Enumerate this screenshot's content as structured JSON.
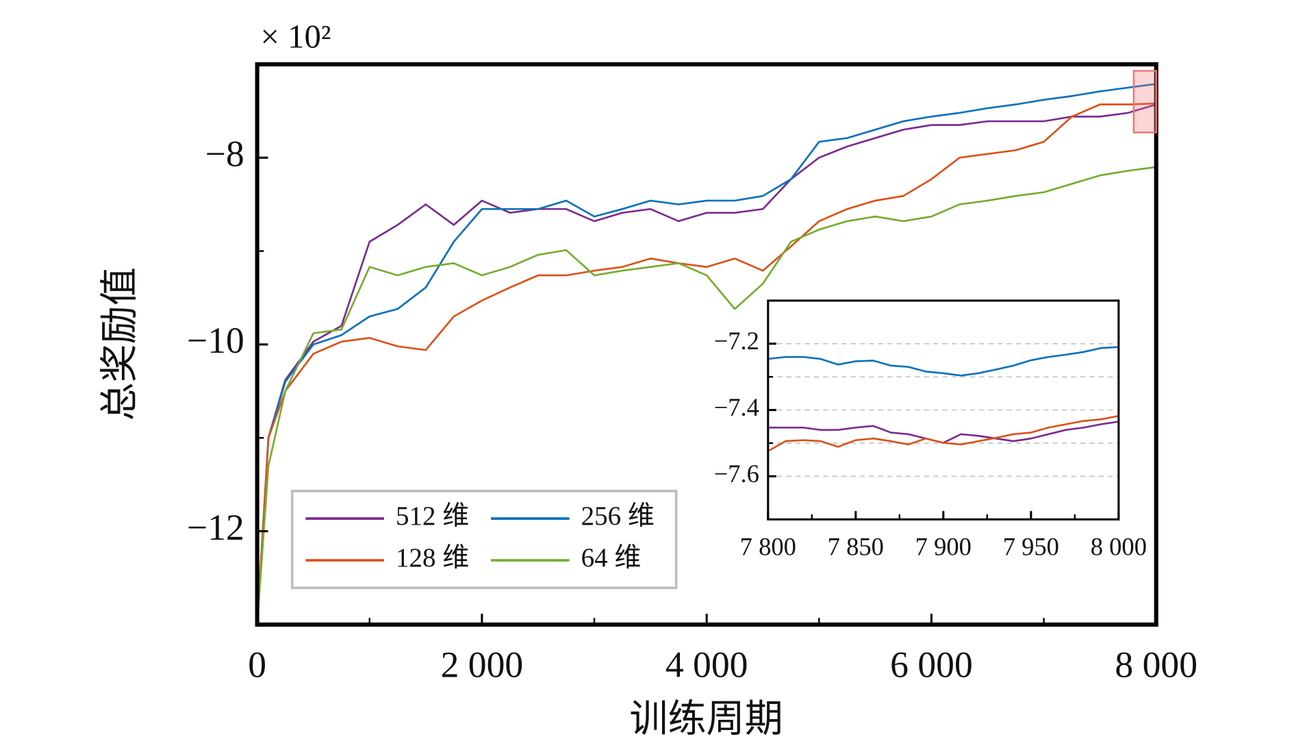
{
  "chart_data": [
    {
      "type": "line",
      "multiplier": "× 10²",
      "x_label": "训练周期",
      "y_label": "总奖励值",
      "x": [
        0,
        100,
        250,
        500,
        750,
        1000,
        1250,
        1500,
        1750,
        2000,
        2250,
        2500,
        2750,
        3000,
        3250,
        3500,
        3750,
        4000,
        4250,
        4500,
        4750,
        5000,
        5250,
        5500,
        5750,
        6000,
        6250,
        6500,
        6750,
        7000,
        7250,
        7500,
        7750,
        8000
      ],
      "series": [
        {
          "name": "512 维",
          "color": "#7b2d8e",
          "values": [
            -13,
            -11,
            -10.38,
            -9.97,
            -9.8,
            -8.9,
            -8.72,
            -8.5,
            -8.72,
            -8.46,
            -8.59,
            -8.55,
            -8.55,
            -8.68,
            -8.59,
            -8.55,
            -8.68,
            -8.59,
            -8.59,
            -8.55,
            -8.23,
            -8.0,
            -7.88,
            -7.79,
            -7.7,
            -7.65,
            -7.65,
            -7.61,
            -7.61,
            -7.61,
            -7.56,
            -7.56,
            -7.52,
            -7.43
          ]
        },
        {
          "name": "256 维",
          "color": "#0a72ba",
          "values": [
            -13,
            -11,
            -10.4,
            -10.0,
            -9.9,
            -9.7,
            -9.62,
            -9.39,
            -8.9,
            -8.55,
            -8.55,
            -8.55,
            -8.46,
            -8.63,
            -8.55,
            -8.46,
            -8.5,
            -8.46,
            -8.46,
            -8.41,
            -8.23,
            -7.83,
            -7.79,
            -7.7,
            -7.61,
            -7.56,
            -7.52,
            -7.47,
            -7.43,
            -7.38,
            -7.34,
            -7.29,
            -7.25,
            -7.21
          ]
        },
        {
          "name": "128 维",
          "color": "#d95319",
          "values": [
            -13,
            -11,
            -10.5,
            -10.1,
            -9.97,
            -9.93,
            -10.02,
            -10.06,
            -9.7,
            -9.53,
            -9.39,
            -9.26,
            -9.26,
            -9.21,
            -9.17,
            -9.08,
            -9.13,
            -9.17,
            -9.08,
            -9.21,
            -8.95,
            -8.68,
            -8.55,
            -8.46,
            -8.41,
            -8.23,
            -8.0,
            -7.96,
            -7.92,
            -7.83,
            -7.56,
            -7.43,
            -7.43,
            -7.42
          ]
        },
        {
          "name": "64 维",
          "color": "#77ac30",
          "values": [
            -13,
            -11.3,
            -10.5,
            -9.88,
            -9.84,
            -9.17,
            -9.26,
            -9.17,
            -9.13,
            -9.26,
            -9.17,
            -9.04,
            -8.99,
            -9.26,
            -9.21,
            -9.17,
            -9.13,
            -9.26,
            -9.62,
            -9.35,
            -8.9,
            -8.77,
            -8.68,
            -8.63,
            -8.68,
            -8.63,
            -8.5,
            -8.46,
            -8.41,
            -8.37,
            -8.28,
            -8.19,
            -8.14,
            -8.1
          ]
        }
      ],
      "xlim": [
        0,
        8000
      ],
      "ylim": [
        -13,
        -7
      ],
      "xticks": [
        0,
        {
          "value": 2000,
          "label": "2 000"
        },
        {
          "value": 4000,
          "label": "4 000"
        },
        {
          "value": 6000,
          "label": "6 000"
        },
        {
          "value": 8000,
          "label": "8 000"
        }
      ],
      "xminorticks": [
        1000,
        3000,
        5000,
        7000
      ],
      "yticks": [
        {
          "value": -8,
          "label": "−8"
        },
        {
          "value": -10,
          "label": "−10"
        },
        {
          "value": -12,
          "label": "−12"
        }
      ],
      "yminorticks": [
        -9,
        -11
      ],
      "grid": false,
      "legend": "lower left"
    },
    {
      "type": "line",
      "x": [
        7800,
        7810,
        7820,
        7830,
        7840,
        7850,
        7860,
        7870,
        7880,
        7890,
        7900,
        7910,
        7920,
        7930,
        7940,
        7950,
        7960,
        7970,
        7980,
        7990,
        8000
      ],
      "series": [
        {
          "color": "#7b2d8e",
          "values": [
            -7.453,
            -7.453,
            -7.453,
            -7.46,
            -7.46,
            -7.453,
            -7.448,
            -7.468,
            -7.473,
            -7.486,
            -7.499,
            -7.473,
            -7.478,
            -7.486,
            -7.494,
            -7.486,
            -7.473,
            -7.46,
            -7.453,
            -7.443,
            -7.435
          ]
        },
        {
          "color": "#0a72ba",
          "values": [
            -7.246,
            -7.24,
            -7.24,
            -7.246,
            -7.263,
            -7.253,
            -7.251,
            -7.266,
            -7.27,
            -7.284,
            -7.289,
            -7.296,
            -7.289,
            -7.278,
            -7.266,
            -7.25,
            -7.24,
            -7.233,
            -7.225,
            -7.213,
            -7.21
          ]
        },
        {
          "color": "#d95319",
          "values": [
            -7.524,
            -7.494,
            -7.491,
            -7.494,
            -7.511,
            -7.491,
            -7.486,
            -7.494,
            -7.504,
            -7.486,
            -7.499,
            -7.504,
            -7.494,
            -7.484,
            -7.473,
            -7.468,
            -7.453,
            -7.443,
            -7.433,
            -7.428,
            -7.418
          ]
        }
      ],
      "xlim": [
        7800,
        8000
      ],
      "ylim": [
        -7.73,
        -7.07
      ],
      "xticks": [
        {
          "value": 7800,
          "label": "7 800"
        },
        {
          "value": 7850,
          "label": "7 850"
        },
        {
          "value": 7900,
          "label": "7 900"
        },
        {
          "value": 7950,
          "label": "7 950"
        },
        {
          "value": 8000,
          "label": "8 000"
        }
      ],
      "xminorticks": [
        7825,
        7875,
        7925,
        7975
      ],
      "yticks": [
        {
          "value": -7.2,
          "label": "−7.2"
        },
        {
          "value": -7.4,
          "label": "−7.4"
        },
        {
          "value": -7.6,
          "label": "−7.6"
        }
      ],
      "yminorticks": [
        -7.3,
        -7.5
      ],
      "grid": true
    }
  ]
}
